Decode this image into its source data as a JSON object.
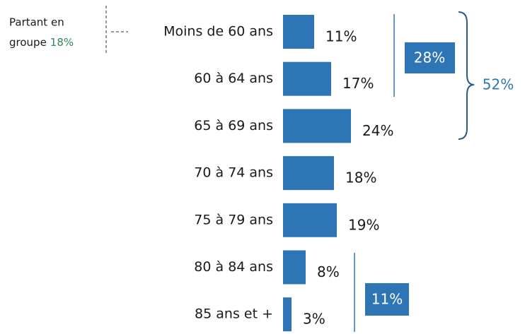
{
  "chart_data": {
    "type": "bar",
    "orientation": "horizontal",
    "categories": [
      "Moins de 60 ans",
      "60 à 64 ans",
      "65 à 69 ans",
      "70 à 74 ans",
      "75 à 79 ans",
      "80 à 84 ans",
      "85 ans et +"
    ],
    "values": [
      11,
      17,
      24,
      18,
      19,
      8,
      3
    ],
    "value_labels": [
      "11%",
      "17%",
      "24%",
      "18%",
      "19%",
      "8%",
      "3%"
    ],
    "color": "#2e75b6",
    "annotations": {
      "note_line1": "Partant en",
      "note_line2": "groupe",
      "note_value": "18%",
      "group_top": "28%",
      "group_all": "52%",
      "group_bottom": "11%"
    }
  }
}
